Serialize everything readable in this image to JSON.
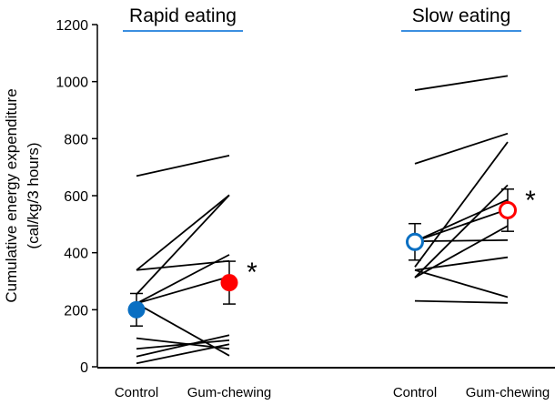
{
  "chart_data": {
    "type": "line",
    "ylabel_line1": "Cumulative energy expenditure",
    "ylabel_line2": "(cal/kg/3 hours)",
    "ylim": [
      0,
      1200
    ],
    "yticks": [
      0,
      200,
      400,
      600,
      800,
      1000,
      1200
    ],
    "grid": false,
    "underline_color": "#3b8fe0",
    "panels": [
      {
        "title": "Rapid eating",
        "categories": [
          "Control",
          "Gum-chewing"
        ],
        "filled_markers": true,
        "control_color": "#0a6fc2",
        "gum_color": "#ff0000",
        "significance": "*",
        "pairs": [
          [
            669,
            741
          ],
          [
            339,
            602
          ],
          [
            339,
            371
          ],
          [
            254,
            602
          ],
          [
            222,
            393
          ],
          [
            222,
            316
          ],
          [
            222,
            39
          ],
          [
            100,
            63
          ],
          [
            63,
            93
          ],
          [
            36,
            111
          ],
          [
            12,
            79
          ]
        ],
        "mean": [
          200,
          295
        ],
        "error": [
          57,
          75
        ]
      },
      {
        "title": "Slow eating",
        "categories": [
          "Control",
          "Gum-chewing"
        ],
        "filled_markers": false,
        "control_color": "#0a6fc2",
        "gum_color": "#ff0000",
        "significance": "*",
        "pairs": [
          [
            970,
            1020
          ],
          [
            712,
            818
          ],
          [
            350,
            788
          ],
          [
            313,
            637
          ],
          [
            440,
            586
          ],
          [
            440,
            552
          ],
          [
            440,
            444
          ],
          [
            313,
            494
          ],
          [
            339,
            384
          ],
          [
            339,
            244
          ],
          [
            231,
            224
          ]
        ],
        "mean": [
          438,
          549
        ],
        "error": [
          64,
          74
        ]
      }
    ]
  }
}
